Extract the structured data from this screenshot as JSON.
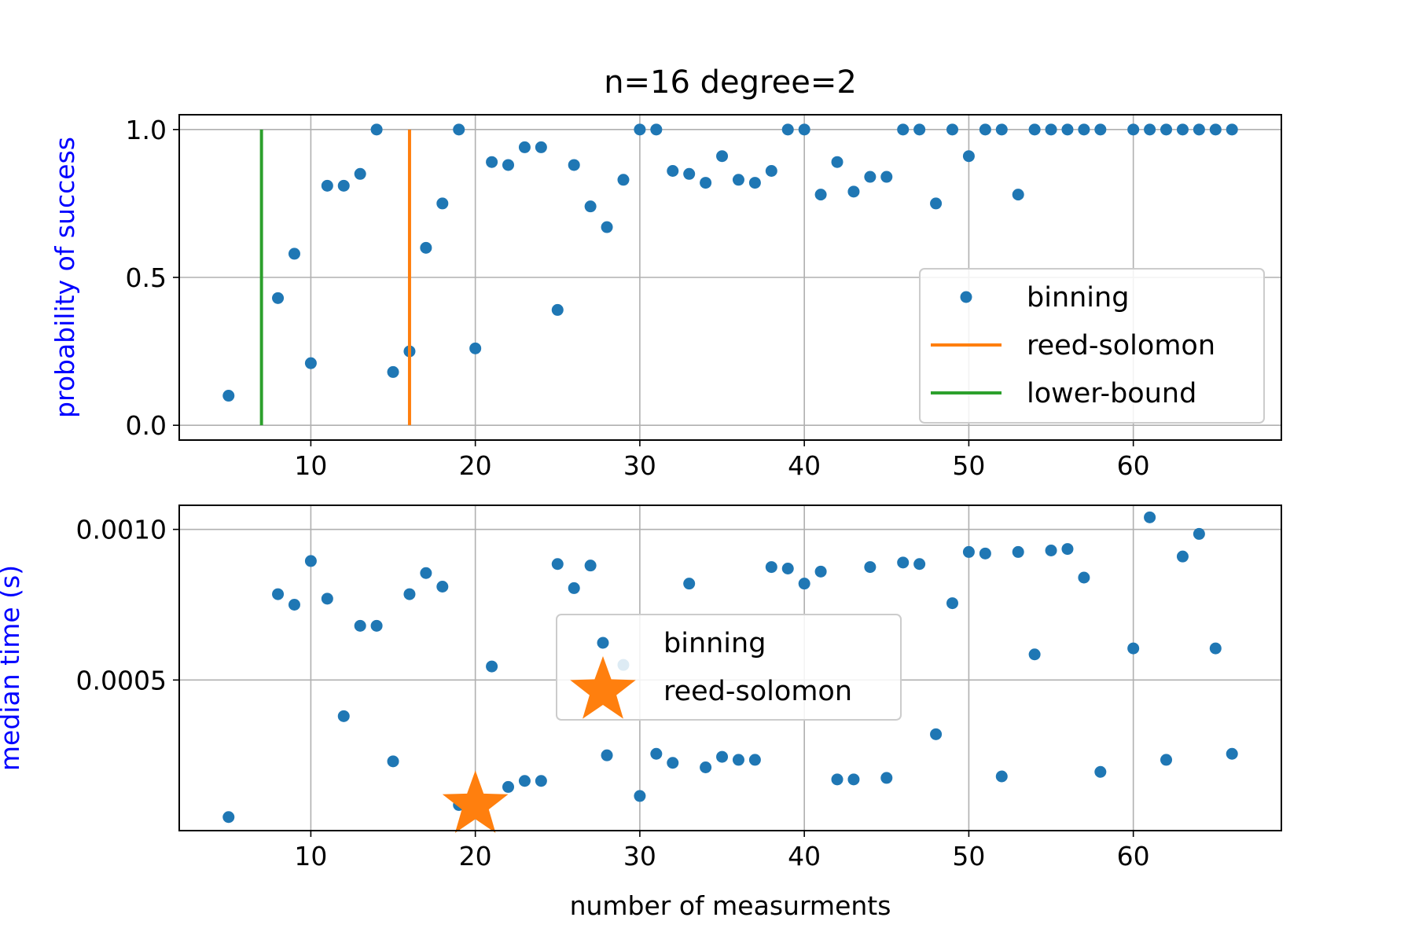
{
  "colors": {
    "binning": "#1f77b4",
    "reed_solomon": "#ff7f0e",
    "lower_bound": "#2ca02c",
    "ylabel": "#0000ff",
    "grid": "#b0b0b0"
  },
  "chart_data": [
    {
      "type": "scatter",
      "title": "n=16 degree=2",
      "xlabel": "",
      "ylabel": "probability of success",
      "xlim": [
        2,
        69
      ],
      "ylim": [
        -0.05,
        1.05
      ],
      "xticks": [
        10,
        20,
        30,
        40,
        50,
        60
      ],
      "xtick_labels": [
        "10",
        "20",
        "30",
        "40",
        "50",
        "60"
      ],
      "yticks": [
        0.0,
        0.5,
        1.0
      ],
      "ytick_labels": [
        "0.0",
        "0.5",
        "1.0"
      ],
      "grid": true,
      "legend_placement": "center-right",
      "legend": [
        "binning",
        "reed-solomon",
        "lower-bound"
      ],
      "series": [
        {
          "name": "binning",
          "type": "scatter",
          "x": [
            5,
            8,
            9,
            10,
            11,
            12,
            13,
            14,
            15,
            16,
            17,
            18,
            19,
            20,
            21,
            22,
            23,
            24,
            25,
            26,
            27,
            28,
            29,
            30,
            31,
            32,
            33,
            34,
            35,
            36,
            37,
            38,
            39,
            40,
            41,
            42,
            43,
            44,
            45,
            46,
            47,
            48,
            49,
            50,
            51,
            52,
            53,
            54,
            55,
            56,
            57,
            58,
            60,
            61,
            62,
            63,
            64,
            65,
            66
          ],
          "y": [
            0.1,
            0.43,
            0.58,
            0.21,
            0.81,
            0.81,
            0.85,
            1.0,
            0.18,
            0.25,
            0.6,
            0.75,
            1.0,
            0.26,
            0.89,
            0.88,
            0.94,
            0.94,
            0.39,
            0.88,
            0.74,
            0.67,
            0.83,
            1.0,
            1.0,
            0.86,
            0.85,
            0.82,
            0.91,
            0.83,
            0.82,
            0.86,
            1.0,
            1.0,
            0.78,
            0.89,
            0.79,
            0.84,
            0.84,
            1.0,
            1.0,
            0.75,
            1.0,
            0.91,
            1.0,
            1.0,
            0.78,
            1.0,
            1.0,
            1.0,
            1.0,
            1.0,
            1.0,
            1.0,
            1.0,
            1.0,
            1.0,
            1.0,
            1.0
          ]
        },
        {
          "name": "reed-solomon",
          "type": "vline",
          "x": 16,
          "y": [
            0,
            1
          ]
        },
        {
          "name": "lower-bound",
          "type": "vline",
          "x": 7,
          "y": [
            0,
            1
          ]
        }
      ]
    },
    {
      "type": "scatter",
      "title": "",
      "xlabel": "number of measurments",
      "ylabel": "median time (s)",
      "xlim": [
        2,
        69
      ],
      "ylim": [
        0.0,
        0.00108
      ],
      "xticks": [
        10,
        20,
        30,
        40,
        50,
        60
      ],
      "xtick_labels": [
        "10",
        "20",
        "30",
        "40",
        "50",
        "60"
      ],
      "yticks": [
        0.0005,
        0.001
      ],
      "ytick_labels": [
        "0.0005",
        "0.0010"
      ],
      "grid": true,
      "legend_placement": "center",
      "legend": [
        "binning",
        "reed-solomon"
      ],
      "series": [
        {
          "name": "binning",
          "type": "scatter",
          "x": [
            5,
            8,
            9,
            10,
            11,
            12,
            13,
            14,
            15,
            16,
            17,
            18,
            19,
            20,
            21,
            22,
            23,
            24,
            25,
            26,
            27,
            28,
            29,
            30,
            31,
            32,
            33,
            34,
            35,
            36,
            37,
            38,
            39,
            40,
            41,
            42,
            43,
            44,
            45,
            46,
            47,
            48,
            49,
            50,
            51,
            52,
            53,
            54,
            55,
            56,
            57,
            58,
            60,
            61,
            62,
            63,
            64,
            65,
            66
          ],
          "y": [
            4.5e-05,
            0.000785,
            0.00075,
            0.000895,
            0.00077,
            0.00038,
            0.00068,
            0.00068,
            0.00023,
            0.000785,
            0.000855,
            0.00081,
            8.5e-05,
            7.5e-05,
            0.000545,
            0.000145,
            0.000165,
            0.000165,
            0.000885,
            0.000805,
            0.00088,
            0.00025,
            0.00055,
            0.000115,
            0.000255,
            0.000225,
            0.00082,
            0.00021,
            0.000245,
            0.000235,
            0.000235,
            0.000875,
            0.00087,
            0.00082,
            0.00086,
            0.00017,
            0.00017,
            0.000875,
            0.000175,
            0.00089,
            0.000885,
            0.00032,
            0.000755,
            0.000925,
            0.00092,
            0.00018,
            0.000925,
            0.000585,
            0.00093,
            0.000935,
            0.00084,
            0.000195,
            0.000605,
            0.00104,
            0.000235,
            0.00091,
            0.000985,
            0.000605,
            0.000255
          ]
        },
        {
          "name": "reed-solomon",
          "type": "scatter",
          "marker": "star",
          "x": [
            20
          ],
          "y": [
            8.5e-05
          ]
        }
      ]
    }
  ]
}
